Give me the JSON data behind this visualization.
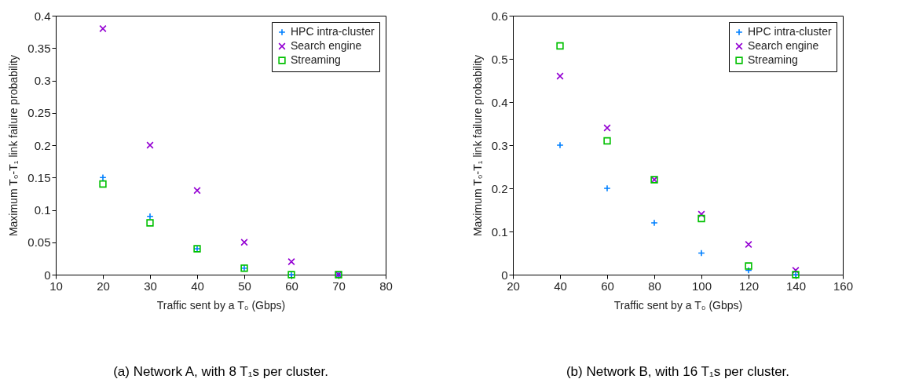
{
  "chart_data": [
    {
      "type": "scatter",
      "title": "(a) Network A, with 8 T₁s per cluster.",
      "xlabel": "Traffic sent by a T₀ (Gbps)",
      "ylabel": "Maximum T₀-T₁ link failure probability",
      "x": [
        20,
        30,
        40,
        50,
        60,
        70
      ],
      "xlim": [
        10,
        80
      ],
      "xticks": [
        10,
        20,
        30,
        40,
        50,
        60,
        70,
        80
      ],
      "ylim": [
        0,
        0.4
      ],
      "yticks": [
        0,
        0.05,
        0.1,
        0.15,
        0.2,
        0.25,
        0.3,
        0.35,
        0.4
      ],
      "grid": false,
      "legend": "top right",
      "series": [
        {
          "name": "HPC intra-cluster",
          "color": "#0080ff",
          "marker": "cross",
          "values": [
            0.15,
            0.09,
            0.04,
            0.01,
            0,
            0
          ]
        },
        {
          "name": "Search engine",
          "color": "#9400d3",
          "marker": "x",
          "values": [
            0.38,
            0.2,
            0.13,
            0.05,
            0.02,
            0
          ]
        },
        {
          "name": "Streaming",
          "color": "#00c000",
          "marker": "square",
          "values": [
            0.14,
            0.08,
            0.04,
            0.01,
            0,
            0
          ]
        }
      ]
    },
    {
      "type": "scatter",
      "title": "(b) Network B, with 16 T₁s per cluster.",
      "xlabel": "Traffic sent by a T₀ (Gbps)",
      "ylabel": "Maximum T₀-T₁ link failure probability",
      "x": [
        40,
        60,
        80,
        100,
        120,
        140
      ],
      "xlim": [
        20,
        160
      ],
      "xticks": [
        20,
        40,
        60,
        80,
        100,
        120,
        140,
        160
      ],
      "ylim": [
        0,
        0.6
      ],
      "yticks": [
        0,
        0.1,
        0.2,
        0.3,
        0.4,
        0.5,
        0.6
      ],
      "grid": false,
      "legend": "top right",
      "series": [
        {
          "name": "HPC intra-cluster",
          "color": "#0080ff",
          "marker": "cross",
          "values": [
            0.3,
            0.2,
            0.12,
            0.05,
            0.01,
            0
          ]
        },
        {
          "name": "Search engine",
          "color": "#9400d3",
          "marker": "x",
          "values": [
            0.46,
            0.34,
            0.22,
            0.14,
            0.07,
            0.01
          ]
        },
        {
          "name": "Streaming",
          "color": "#00c000",
          "marker": "square",
          "values": [
            0.53,
            0.31,
            0.22,
            0.13,
            0.02,
            0
          ]
        }
      ]
    }
  ]
}
